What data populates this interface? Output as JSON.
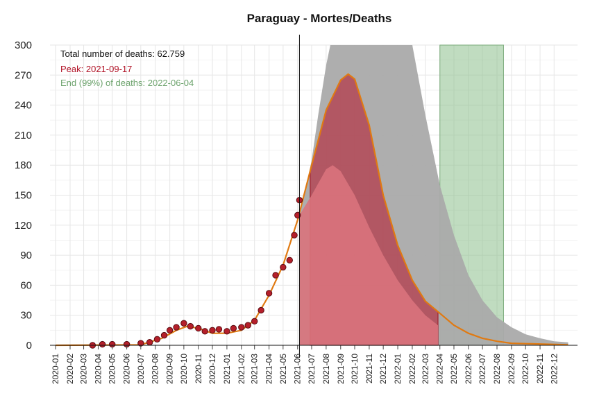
{
  "chart_data": {
    "type": "scatter",
    "title": "Paraguay - Mortes/Deaths",
    "xlabel": "",
    "ylabel": "",
    "ylim": [
      0,
      300
    ],
    "yticks": [
      0,
      30,
      60,
      90,
      120,
      150,
      180,
      210,
      240,
      270,
      300
    ],
    "xlim": [
      "2019-12-20",
      "2023-01-20"
    ],
    "xticks": [
      "2020-01",
      "2020-02",
      "2020-03",
      "2020-04",
      "2020-05",
      "2020-06",
      "2020-07",
      "2020-08",
      "2020-09",
      "2020-10",
      "2020-11",
      "2020-12",
      "2021-01",
      "2021-02",
      "2021-03",
      "2021-04",
      "2021-05",
      "2021-06",
      "2021-07",
      "2021-08",
      "2021-09",
      "2021-10",
      "2021-11",
      "2021-12",
      "2022-01",
      "2022-02",
      "2022-03",
      "2022-04",
      "2022-05",
      "2022-06",
      "2022-07",
      "2022-08",
      "2022-09",
      "2022-10",
      "2022-11",
      "2022-12"
    ],
    "grid": true,
    "current_date": "2021-06-05",
    "annotations": {
      "total": "Total number of deaths: 62.759",
      "peak": "Peak: 2021-09-17",
      "end": "End (99%) of deaths: 2022-06-04"
    },
    "end_window": {
      "start": "2022-04-01",
      "end": "2022-08-15"
    },
    "projection_window": {
      "start": "2021-06-28",
      "end": "2022-03-28"
    },
    "observed_daily": [
      [
        "2020-03-20",
        0
      ],
      [
        "2020-04-10",
        1
      ],
      [
        "2020-05-01",
        1
      ],
      [
        "2020-06-01",
        1
      ],
      [
        "2020-07-01",
        2
      ],
      [
        "2020-07-20",
        3
      ],
      [
        "2020-08-05",
        6
      ],
      [
        "2020-08-20",
        10
      ],
      [
        "2020-09-01",
        15
      ],
      [
        "2020-09-15",
        18
      ],
      [
        "2020-10-01",
        22
      ],
      [
        "2020-10-15",
        19
      ],
      [
        "2020-11-01",
        17
      ],
      [
        "2020-11-15",
        14
      ],
      [
        "2020-12-01",
        15
      ],
      [
        "2020-12-15",
        16
      ],
      [
        "2021-01-01",
        14
      ],
      [
        "2021-01-15",
        17
      ],
      [
        "2021-02-01",
        18
      ],
      [
        "2021-02-15",
        20
      ],
      [
        "2021-03-01",
        24
      ],
      [
        "2021-03-15",
        35
      ],
      [
        "2021-04-01",
        52
      ],
      [
        "2021-04-15",
        70
      ],
      [
        "2021-05-01",
        78
      ],
      [
        "2021-05-15",
        85
      ],
      [
        "2021-05-25",
        110
      ],
      [
        "2021-06-01",
        130
      ],
      [
        "2021-06-05",
        145
      ]
    ],
    "series": [
      {
        "name": "fit",
        "color": "#e07a12",
        "points": [
          [
            "2020-01-01",
            0
          ],
          [
            "2020-07-01",
            0.5
          ],
          [
            "2020-08-15",
            7
          ],
          [
            "2020-09-15",
            15
          ],
          [
            "2020-10-08",
            19
          ],
          [
            "2020-11-01",
            17
          ],
          [
            "2020-12-01",
            12
          ],
          [
            "2021-01-01",
            12
          ],
          [
            "2021-02-01",
            15
          ],
          [
            "2021-03-01",
            25
          ],
          [
            "2021-04-01",
            50
          ],
          [
            "2021-05-01",
            80
          ],
          [
            "2021-06-01",
            125
          ],
          [
            "2021-07-01",
            180
          ],
          [
            "2021-08-01",
            235
          ],
          [
            "2021-09-01",
            265
          ],
          [
            "2021-09-17",
            271
          ],
          [
            "2021-10-01",
            266
          ],
          [
            "2021-11-01",
            220
          ],
          [
            "2021-12-01",
            150
          ],
          [
            "2022-01-01",
            100
          ],
          [
            "2022-02-01",
            65
          ],
          [
            "2022-03-01",
            44
          ],
          [
            "2022-04-01",
            32
          ],
          [
            "2022-05-01",
            20
          ],
          [
            "2022-06-01",
            12
          ],
          [
            "2022-07-01",
            7
          ],
          [
            "2022-08-01",
            4
          ],
          [
            "2022-09-01",
            2
          ],
          [
            "2022-12-31",
            0.5
          ]
        ]
      },
      {
        "name": "upper band",
        "color": "#aaaaaa",
        "points": [
          [
            "2021-06-05",
            135
          ],
          [
            "2021-06-20",
            160
          ],
          [
            "2021-07-01",
            185
          ],
          [
            "2021-07-15",
            230
          ],
          [
            "2021-08-01",
            280
          ],
          [
            "2021-08-10",
            300
          ],
          [
            "2022-02-01",
            300
          ],
          [
            "2022-03-01",
            230
          ],
          [
            "2022-04-01",
            160
          ],
          [
            "2022-05-01",
            110
          ],
          [
            "2022-06-01",
            70
          ],
          [
            "2022-07-01",
            45
          ],
          [
            "2022-08-01",
            28
          ],
          [
            "2022-09-01",
            18
          ],
          [
            "2022-10-01",
            11
          ],
          [
            "2022-11-01",
            7
          ],
          [
            "2022-12-01",
            4
          ],
          [
            "2022-12-31",
            3
          ]
        ]
      },
      {
        "name": "lower band",
        "color": "#d9737c",
        "points": [
          [
            "2021-06-05",
            130
          ],
          [
            "2021-07-01",
            150
          ],
          [
            "2021-08-01",
            176
          ],
          [
            "2021-08-15",
            180
          ],
          [
            "2021-09-01",
            174
          ],
          [
            "2021-10-01",
            150
          ],
          [
            "2021-11-01",
            118
          ],
          [
            "2021-12-01",
            90
          ],
          [
            "2022-01-01",
            65
          ],
          [
            "2022-02-01",
            45
          ],
          [
            "2022-03-01",
            30
          ],
          [
            "2022-03-28",
            20
          ]
        ]
      }
    ]
  }
}
